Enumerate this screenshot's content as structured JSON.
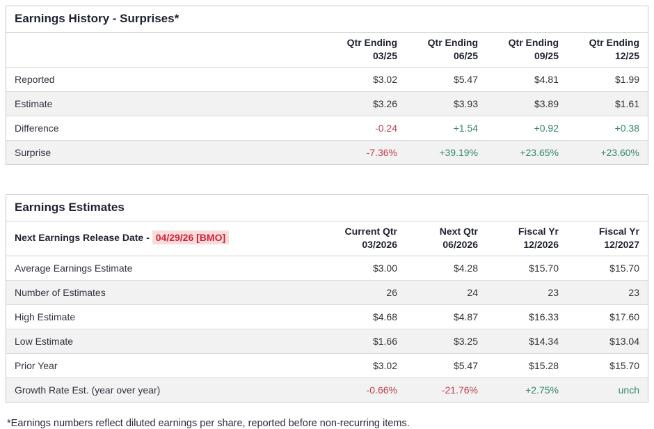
{
  "colors": {
    "positive": "#33876d",
    "negative": "#bf3e4e",
    "release_date_text": "#cc2233",
    "release_date_bg": "#fbdcdc"
  },
  "tables": [
    {
      "title": "Earnings History - Surprises*",
      "header_left": "",
      "release_date": "",
      "columns": [
        {
          "line1": "Qtr Ending",
          "line2": "03/25"
        },
        {
          "line1": "Qtr Ending",
          "line2": "06/25"
        },
        {
          "line1": "Qtr Ending",
          "line2": "09/25"
        },
        {
          "line1": "Qtr Ending",
          "line2": "12/25"
        }
      ],
      "rows": [
        {
          "label": "Reported",
          "values": [
            "$3.02",
            "$5.47",
            "$4.81",
            "$1.99"
          ]
        },
        {
          "label": "Estimate",
          "values": [
            "$3.26",
            "$3.93",
            "$3.89",
            "$1.61"
          ]
        },
        {
          "label": "Difference",
          "values": [
            "-0.24",
            "+1.54",
            "+0.92",
            "+0.38"
          ]
        },
        {
          "label": "Surprise",
          "values": [
            "-7.36%",
            "+39.19%",
            "+23.65%",
            "+23.60%"
          ]
        }
      ]
    },
    {
      "title": "Earnings Estimates",
      "header_left": "Next Earnings Release Date -",
      "release_date": "04/29/26 [BMO]",
      "columns": [
        {
          "line1": "Current Qtr",
          "line2": "03/2026"
        },
        {
          "line1": "Next Qtr",
          "line2": "06/2026"
        },
        {
          "line1": "Fiscal Yr",
          "line2": "12/2026"
        },
        {
          "line1": "Fiscal Yr",
          "line2": "12/2027"
        }
      ],
      "rows": [
        {
          "label": "Average Earnings Estimate",
          "values": [
            "$3.00",
            "$4.28",
            "$15.70",
            "$15.70"
          ]
        },
        {
          "label": "Number of Estimates",
          "values": [
            "26",
            "24",
            "23",
            "23"
          ]
        },
        {
          "label": "High Estimate",
          "values": [
            "$4.68",
            "$4.87",
            "$16.33",
            "$17.60"
          ]
        },
        {
          "label": "Low Estimate",
          "values": [
            "$1.66",
            "$3.25",
            "$14.34",
            "$13.04"
          ]
        },
        {
          "label": "Prior Year",
          "values": [
            "$3.02",
            "$5.47",
            "$15.28",
            "$15.70"
          ]
        },
        {
          "label": "Growth Rate Est. (year over year)",
          "values": [
            "-0.66%",
            "-21.76%",
            "+2.75%",
            "unch"
          ]
        }
      ]
    }
  ],
  "footnote": "*Earnings numbers reflect diluted earnings per share, reported before non-recurring items."
}
